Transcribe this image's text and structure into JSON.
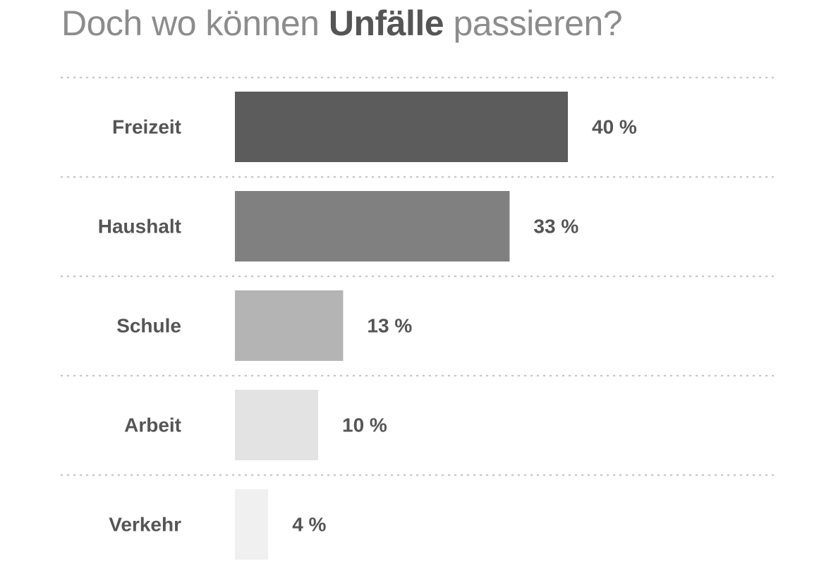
{
  "chart_data": {
    "type": "bar",
    "orientation": "horizontal",
    "title": {
      "prefix": "Doch wo können ",
      "emphasis": "Unfälle",
      "suffix": " passieren?"
    },
    "xlabel": "",
    "ylabel": "",
    "unit": "%",
    "xlim": [
      0,
      40
    ],
    "grid": false,
    "legend": "none",
    "categories": [
      "Freizeit",
      "Haushalt",
      "Schule",
      "Arbeit",
      "Verkehr"
    ],
    "values": [
      40,
      33,
      13,
      10,
      4
    ],
    "value_labels": [
      "40 %",
      "33 %",
      "13 %",
      "10 %",
      "4 %"
    ],
    "colors": [
      "#5c5c5c",
      "#808080",
      "#b4b4b4",
      "#e3e3e3",
      "#f0f0f0"
    ]
  }
}
